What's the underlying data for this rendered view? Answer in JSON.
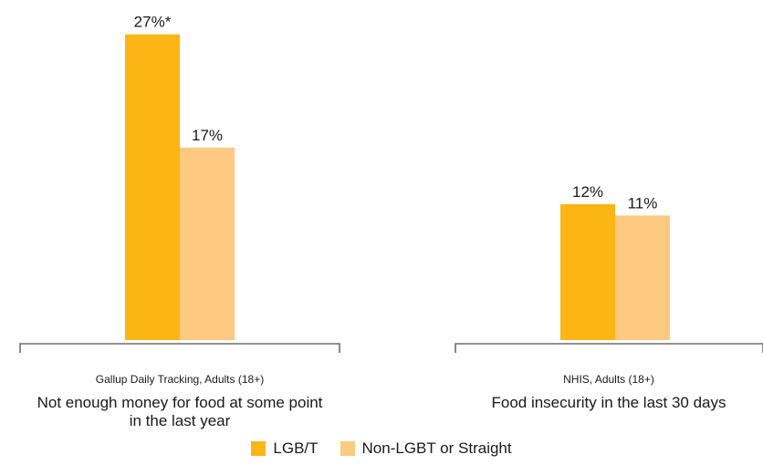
{
  "chart_data": [
    {
      "type": "bar",
      "source": "Gallup Daily Tracking, Adults (18+)",
      "category": "Not enough money for food at some point in the last year",
      "category_lines": [
        "Not enough money for food at some point",
        "in the last year"
      ],
      "series": [
        {
          "name": "LGB/T",
          "value": 27,
          "label": "27%*"
        },
        {
          "name": "Non-LGBT or Straight",
          "value": 17,
          "label": "17%"
        }
      ],
      "ylim": [
        0,
        30
      ],
      "grid": false
    },
    {
      "type": "bar",
      "source": "NHIS, Adults (18+)",
      "category": "Food insecurity in the last 30 days",
      "category_lines": [
        "Food insecurity in the last 30 days"
      ],
      "series": [
        {
          "name": "LGB/T",
          "value": 12,
          "label": "12%"
        },
        {
          "name": "Non-LGBT or Straight",
          "value": 11,
          "label": "11%"
        }
      ],
      "ylim": [
        0,
        30
      ],
      "grid": false
    }
  ],
  "legend": {
    "placement": "bottom-center",
    "items": [
      {
        "name": "LGB/T",
        "color": "#FBB615"
      },
      {
        "name": "Non-LGBT or Straight",
        "color": "#FEC980"
      }
    ]
  },
  "colors": {
    "lgbt": "#FBB615",
    "non_lgbt": "#FEC980",
    "axis": "#6E6E6E"
  }
}
